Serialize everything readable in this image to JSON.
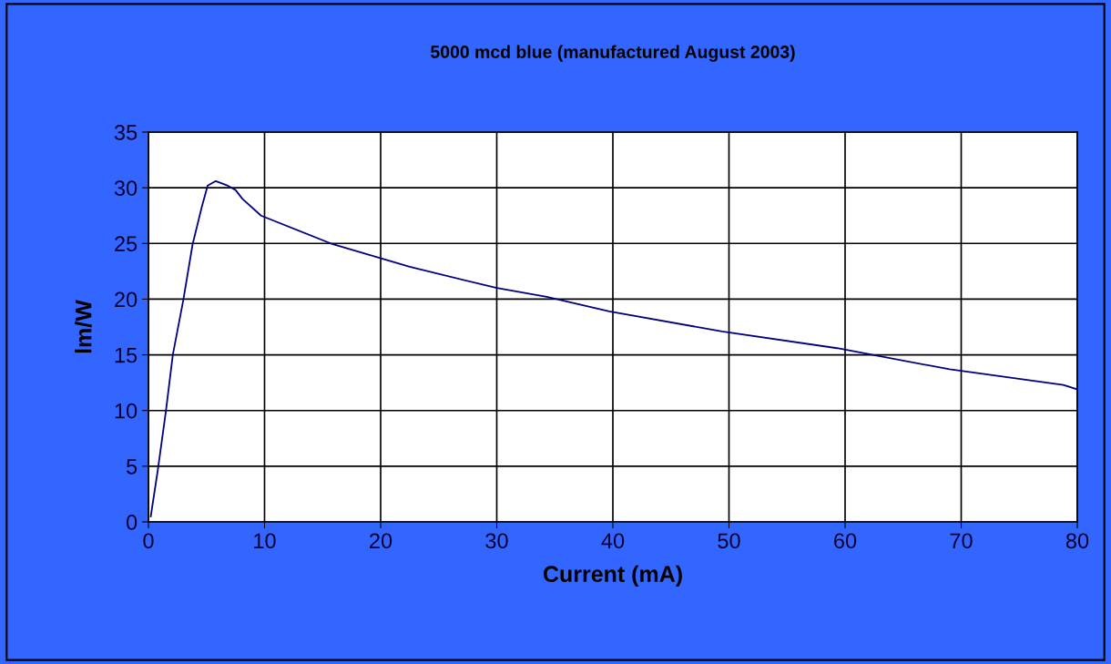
{
  "chart_data": {
    "type": "line",
    "title": "5000 mcd blue (manufactured August 2003)",
    "xlabel": "Current (mA)",
    "ylabel": "lm/W",
    "x": [
      0.2,
      0.8,
      1.5,
      2.1,
      3.0,
      3.8,
      4.6,
      5.1,
      5.8,
      6.8,
      7.5,
      8.1,
      9.7,
      15.7,
      19.9,
      22.5,
      30,
      34.3,
      39.7,
      49.4,
      59.3,
      69,
      78.8,
      80
    ],
    "series": [
      {
        "color": "#000080",
        "values": [
          0.5,
          4.6,
          9.9,
          15.0,
          19.9,
          24.9,
          28.3,
          30.2,
          30.6,
          30.2,
          29.8,
          29.0,
          27.5,
          25.0,
          23.7,
          22.9,
          21.0,
          20.2,
          18.9,
          17.1,
          15.6,
          13.7,
          12.3,
          11.9
        ]
      }
    ],
    "xlim": [
      0,
      80
    ],
    "ylim": [
      0,
      35
    ],
    "xticks": [
      0,
      10,
      20,
      30,
      40,
      50,
      60,
      70,
      80
    ],
    "yticks": [
      0,
      5,
      10,
      15,
      20,
      25,
      30,
      35
    ],
    "grid": true,
    "marker": "none",
    "line_style": "solid"
  }
}
